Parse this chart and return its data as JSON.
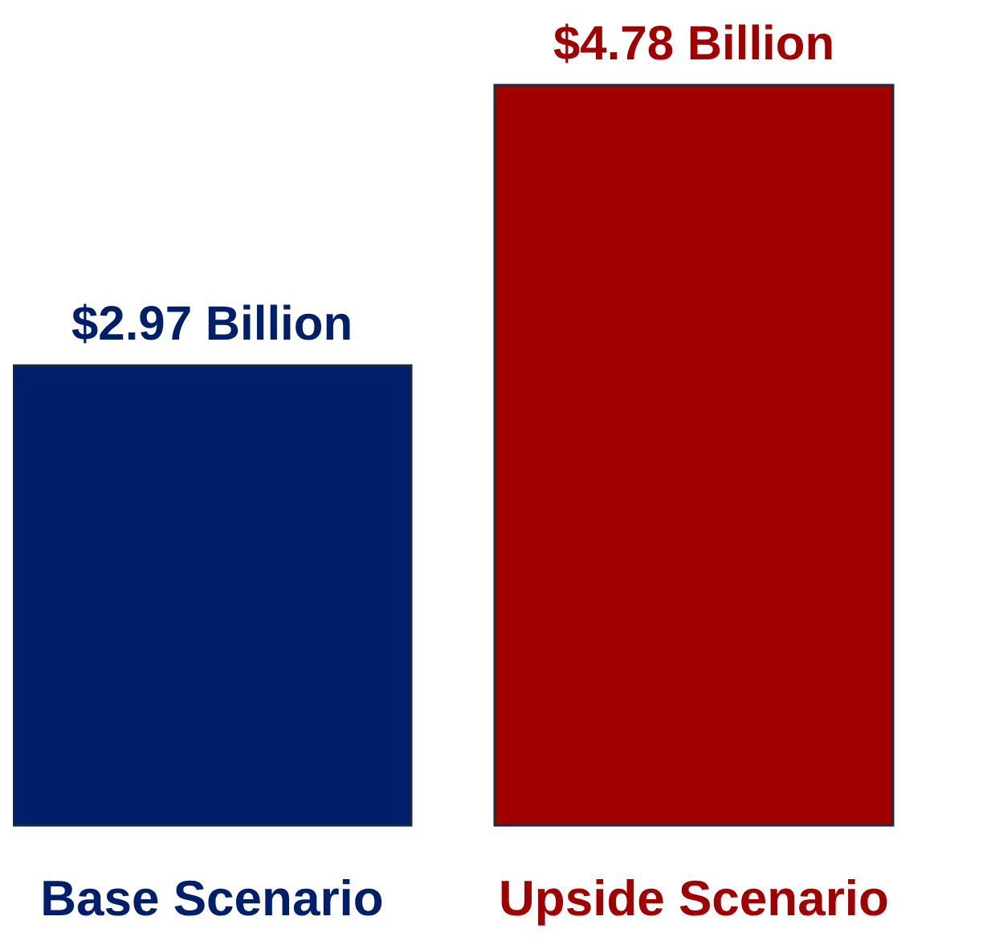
{
  "chart_data": {
    "type": "bar",
    "categories": [
      "Base Scenario",
      "Upside Scenario"
    ],
    "values": [
      2.97,
      4.78
    ],
    "colors": [
      "#001f6b",
      "#a00000"
    ],
    "value_labels": [
      "$2.97 Billion",
      "$4.78 Billion"
    ]
  }
}
